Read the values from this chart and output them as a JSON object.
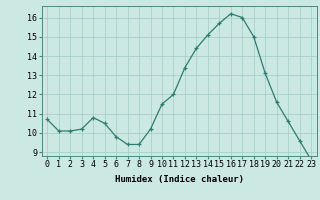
{
  "x": [
    0,
    1,
    2,
    3,
    4,
    5,
    6,
    7,
    8,
    9,
    10,
    11,
    12,
    13,
    14,
    15,
    16,
    17,
    18,
    19,
    20,
    21,
    22,
    23
  ],
  "y": [
    10.7,
    10.1,
    10.1,
    10.2,
    10.8,
    10.5,
    9.8,
    9.4,
    9.4,
    10.2,
    11.5,
    12.0,
    13.4,
    14.4,
    15.1,
    15.7,
    16.2,
    16.0,
    15.0,
    13.1,
    11.6,
    10.6,
    9.6,
    8.6
  ],
  "line_color": "#2e7d6e",
  "marker_color": "#2e7d6e",
  "bg_color": "#cce8e3",
  "grid_color": "#aacfc9",
  "xlabel": "Humidex (Indice chaleur)",
  "ylim": [
    8.8,
    16.6
  ],
  "yticks": [
    9,
    10,
    11,
    12,
    13,
    14,
    15,
    16
  ],
  "xtick_labels": [
    "0",
    "1",
    "2",
    "3",
    "4",
    "5",
    "6",
    "7",
    "8",
    "9",
    "10",
    "11",
    "12",
    "13",
    "14",
    "15",
    "16",
    "17",
    "18",
    "19",
    "20",
    "21",
    "22",
    "23"
  ],
  "xlabel_fontsize": 6.5,
  "tick_fontsize": 6.0,
  "marker_size": 2.5,
  "line_width": 0.9
}
